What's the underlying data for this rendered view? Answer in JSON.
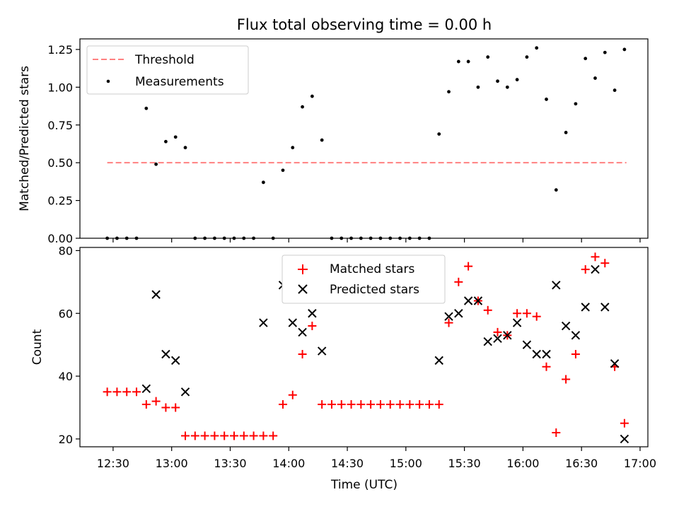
{
  "figure": {
    "title": "Flux total observing time = 0.00 h",
    "xlabel": "Time (UTC)"
  },
  "chart_data": [
    {
      "type": "scatter",
      "ylabel": "Matched/Predicted stars",
      "xlim": [
        "12:13",
        "17:04"
      ],
      "ylim": [
        0,
        1.32
      ],
      "yticks": [
        "0.00",
        "0.25",
        "0.50",
        "0.75",
        "1.00",
        "1.25"
      ],
      "ytick_values": [
        0,
        0.25,
        0.5,
        0.75,
        1.0,
        1.25
      ],
      "legend_position": "upper-left",
      "threshold": {
        "name": "Threshold",
        "value": 0.5,
        "x_range": [
          "12:27",
          "16:53"
        ],
        "color": "#ff8080",
        "style": "dashed"
      },
      "series": [
        {
          "name": "Measurements",
          "marker": "dot",
          "color": "#000000",
          "points": [
            [
              "12:27",
              0
            ],
            [
              "12:32",
              0
            ],
            [
              "12:37",
              0
            ],
            [
              "12:42",
              0
            ],
            [
              "12:47",
              0.86
            ],
            [
              "12:52",
              0.49
            ],
            [
              "12:57",
              0.64
            ],
            [
              "13:02",
              0.67
            ],
            [
              "13:07",
              0.6
            ],
            [
              "13:12",
              0
            ],
            [
              "13:17",
              0
            ],
            [
              "13:22",
              0
            ],
            [
              "13:27",
              0
            ],
            [
              "13:32",
              0
            ],
            [
              "13:37",
              0
            ],
            [
              "13:42",
              0
            ],
            [
              "13:47",
              0.37
            ],
            [
              "13:52",
              0
            ],
            [
              "13:57",
              0.45
            ],
            [
              "14:02",
              0.6
            ],
            [
              "14:07",
              0.87
            ],
            [
              "14:12",
              0.94
            ],
            [
              "14:17",
              0.65
            ],
            [
              "14:22",
              0
            ],
            [
              "14:27",
              0
            ],
            [
              "14:32",
              0
            ],
            [
              "14:37",
              0
            ],
            [
              "14:42",
              0
            ],
            [
              "14:47",
              0
            ],
            [
              "14:52",
              0
            ],
            [
              "14:57",
              0
            ],
            [
              "15:02",
              0
            ],
            [
              "15:07",
              0
            ],
            [
              "15:12",
              0
            ],
            [
              "15:17",
              0.69
            ],
            [
              "15:22",
              0.97
            ],
            [
              "15:27",
              1.17
            ],
            [
              "15:32",
              1.17
            ],
            [
              "15:37",
              1.0
            ],
            [
              "15:42",
              1.2
            ],
            [
              "15:47",
              1.04
            ],
            [
              "15:52",
              1.0
            ],
            [
              "15:57",
              1.05
            ],
            [
              "16:02",
              1.2
            ],
            [
              "16:07",
              1.26
            ],
            [
              "16:12",
              0.92
            ],
            [
              "16:17",
              0.32
            ],
            [
              "16:22",
              0.7
            ],
            [
              "16:27",
              0.89
            ],
            [
              "16:32",
              1.19
            ],
            [
              "16:37",
              1.06
            ],
            [
              "16:42",
              1.23
            ],
            [
              "16:47",
              0.98
            ],
            [
              "16:52",
              1.25
            ]
          ]
        }
      ]
    },
    {
      "type": "scatter",
      "ylabel": "Count",
      "xlim": [
        "12:13",
        "17:04"
      ],
      "ylim": [
        17.5,
        81
      ],
      "yticks": [
        "20",
        "40",
        "60",
        "80"
      ],
      "ytick_values": [
        20,
        40,
        60,
        80
      ],
      "xticks": [
        "12:30",
        "13:00",
        "13:30",
        "14:00",
        "14:30",
        "15:00",
        "15:30",
        "16:00",
        "16:30",
        "17:00"
      ],
      "legend_position": "upper-center",
      "series": [
        {
          "name": "Matched stars",
          "marker": "plus",
          "color": "#ff0000",
          "points": [
            [
              "12:27",
              35
            ],
            [
              "12:32",
              35
            ],
            [
              "12:37",
              35
            ],
            [
              "12:42",
              35
            ],
            [
              "12:47",
              31
            ],
            [
              "12:52",
              32
            ],
            [
              "12:57",
              30
            ],
            [
              "13:02",
              30
            ],
            [
              "13:07",
              21
            ],
            [
              "13:12",
              21
            ],
            [
              "13:17",
              21
            ],
            [
              "13:22",
              21
            ],
            [
              "13:27",
              21
            ],
            [
              "13:32",
              21
            ],
            [
              "13:37",
              21
            ],
            [
              "13:42",
              21
            ],
            [
              "13:47",
              21
            ],
            [
              "13:52",
              21
            ],
            [
              "13:57",
              31
            ],
            [
              "14:02",
              34
            ],
            [
              "14:07",
              47
            ],
            [
              "14:12",
              56
            ],
            [
              "14:17",
              31
            ],
            [
              "14:22",
              31
            ],
            [
              "14:27",
              31
            ],
            [
              "14:32",
              31
            ],
            [
              "14:37",
              31
            ],
            [
              "14:42",
              31
            ],
            [
              "14:47",
              31
            ],
            [
              "14:52",
              31
            ],
            [
              "14:57",
              31
            ],
            [
              "15:02",
              31
            ],
            [
              "15:07",
              31
            ],
            [
              "15:12",
              31
            ],
            [
              "15:17",
              31
            ],
            [
              "15:22",
              57
            ],
            [
              "15:27",
              70
            ],
            [
              "15:32",
              75
            ],
            [
              "15:37",
              64
            ],
            [
              "15:42",
              61
            ],
            [
              "15:47",
              54
            ],
            [
              "15:52",
              53
            ],
            [
              "15:57",
              60
            ],
            [
              "16:02",
              60
            ],
            [
              "16:07",
              59
            ],
            [
              "16:12",
              43
            ],
            [
              "16:17",
              22
            ],
            [
              "16:22",
              39
            ],
            [
              "16:27",
              47
            ],
            [
              "16:32",
              74
            ],
            [
              "16:37",
              78
            ],
            [
              "16:42",
              76
            ],
            [
              "16:47",
              43
            ],
            [
              "16:52",
              25
            ]
          ]
        },
        {
          "name": "Predicted stars",
          "marker": "x",
          "color": "#000000",
          "points": [
            [
              "12:47",
              36
            ],
            [
              "12:52",
              66
            ],
            [
              "12:57",
              47
            ],
            [
              "13:02",
              45
            ],
            [
              "13:07",
              35
            ],
            [
              "13:47",
              57
            ],
            [
              "13:57",
              69
            ],
            [
              "14:02",
              57
            ],
            [
              "14:07",
              54
            ],
            [
              "14:12",
              60
            ],
            [
              "14:17",
              48
            ],
            [
              "15:17",
              45
            ],
            [
              "15:22",
              59
            ],
            [
              "15:27",
              60
            ],
            [
              "15:32",
              64
            ],
            [
              "15:37",
              64
            ],
            [
              "15:42",
              51
            ],
            [
              "15:47",
              52
            ],
            [
              "15:52",
              53
            ],
            [
              "15:57",
              57
            ],
            [
              "16:02",
              50
            ],
            [
              "16:07",
              47
            ],
            [
              "16:12",
              47
            ],
            [
              "16:17",
              69
            ],
            [
              "16:22",
              56
            ],
            [
              "16:27",
              53
            ],
            [
              "16:32",
              62
            ],
            [
              "16:37",
              74
            ],
            [
              "16:42",
              62
            ],
            [
              "16:47",
              44
            ],
            [
              "16:52",
              20
            ]
          ]
        }
      ]
    }
  ]
}
